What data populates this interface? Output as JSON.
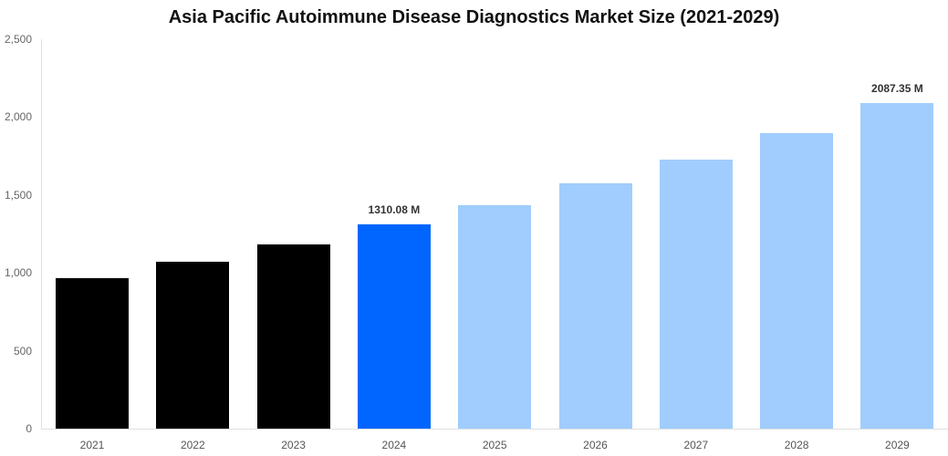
{
  "chart_data": {
    "type": "bar",
    "title": "Asia Pacific Autoimmune Disease Diagnostics Market Size (2021-2029)",
    "xlabel": "",
    "ylabel": "",
    "ylim": [
      0,
      2500
    ],
    "yticks": [
      "0",
      "500",
      "1,000",
      "1,500",
      "2,000",
      "2,500"
    ],
    "grid": false,
    "legend": null,
    "categories": [
      "2021",
      "2022",
      "2023",
      "2024",
      "2025",
      "2026",
      "2027",
      "2028",
      "2029"
    ],
    "values": [
      966,
      1071,
      1183,
      1310.08,
      1434,
      1575,
      1727,
      1897,
      2087.35
    ],
    "colors": [
      "#000000",
      "#000000",
      "#000000",
      "#0066ff",
      "#a0cdfd",
      "#a0cdfd",
      "#a0cdfd",
      "#a0cdfd",
      "#a0cdfd"
    ],
    "annotations": [
      {
        "category": "2024",
        "text": "1310.08 M"
      },
      {
        "category": "2029",
        "text": "2087.35 M"
      }
    ]
  }
}
